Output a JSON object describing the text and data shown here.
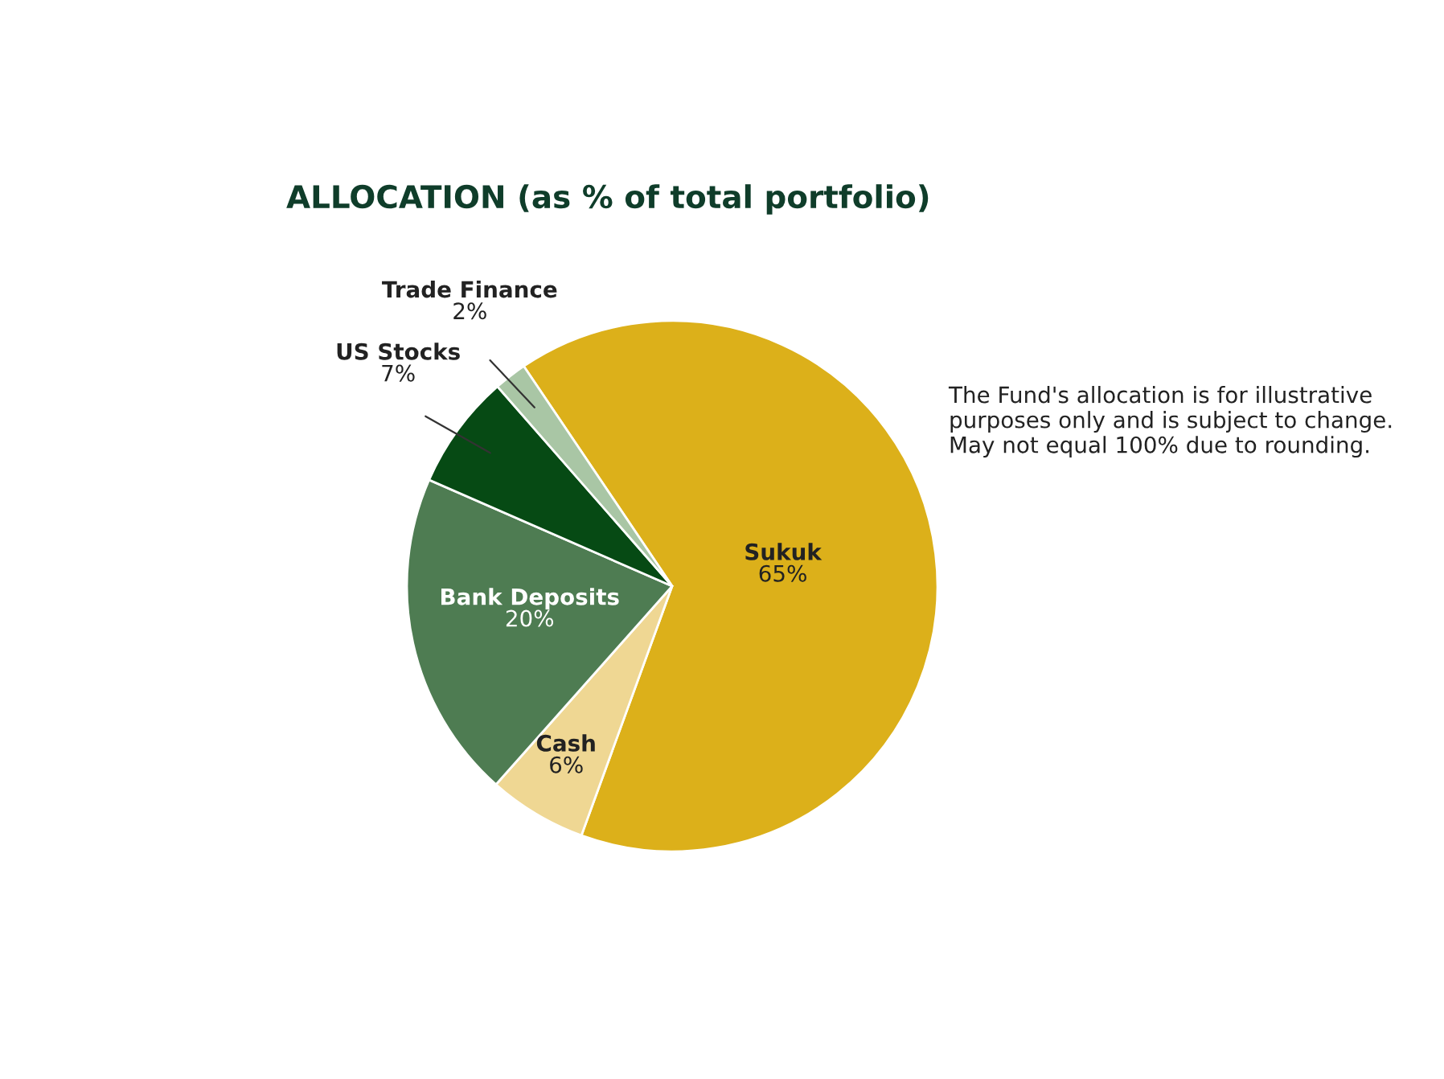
{
  "chart_data": {
    "type": "pie",
    "title": "ALLOCATION (as % of total portfolio)",
    "categories": [
      "Sukuk",
      "Cash",
      "Bank Deposits",
      "US Stocks",
      "Trade Finance"
    ],
    "values": [
      65,
      6,
      20,
      7,
      2
    ],
    "value_labels": [
      "65%",
      "6%",
      "20%",
      "7%",
      "2%"
    ],
    "colors": [
      "#dcb01a",
      "#efd793",
      "#4e7c52",
      "#064a14",
      "#a9c6a5"
    ],
    "annotations": [
      "The Fund's allocation is for illustrative purposes only and is subject to change. May not equal 100% due to rounding."
    ],
    "legend": false
  }
}
